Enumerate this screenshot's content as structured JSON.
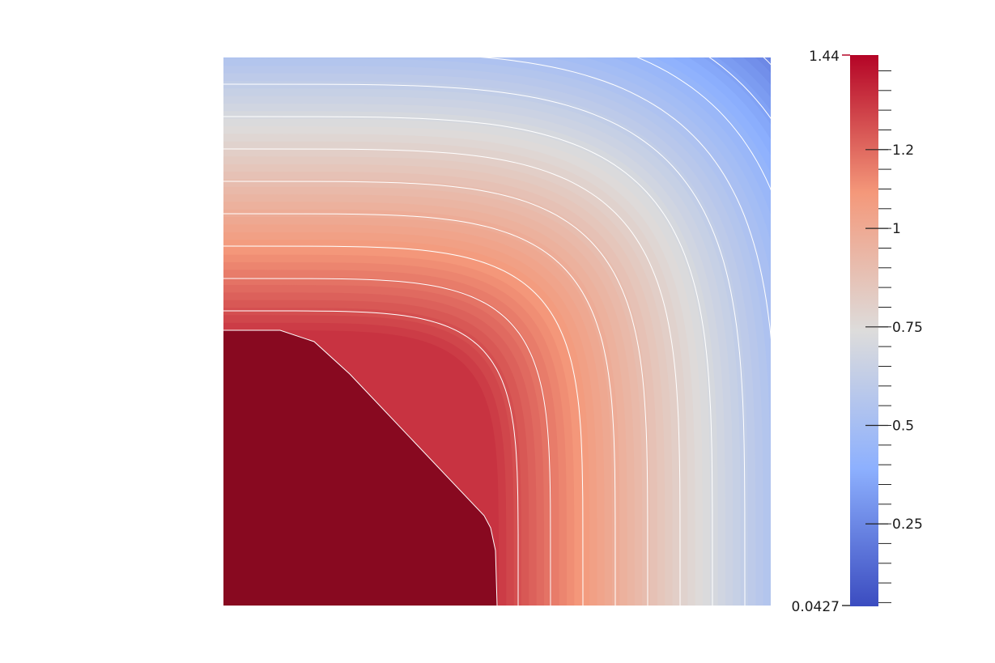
{
  "colorbar": {
    "max_label": "1.44",
    "min_label": "0.0427",
    "max": 1.44,
    "min": 0.0427,
    "ticks": [
      {
        "value": 1.2,
        "label": "1.2"
      },
      {
        "value": 1.0,
        "label": "1"
      },
      {
        "value": 0.75,
        "label": "0.75"
      },
      {
        "value": 0.5,
        "label": "0.5"
      },
      {
        "value": 0.25,
        "label": "0.25"
      }
    ],
    "colormap": [
      "#3b4cc0",
      "#b8cff9",
      "#dddcdb",
      "#f1b69a",
      "#b40426"
    ]
  },
  "field": {
    "contour_color": "#ffffff",
    "contour_count": 14,
    "low_color": "#2f3a91",
    "high_color": "#8a0a1f"
  }
}
